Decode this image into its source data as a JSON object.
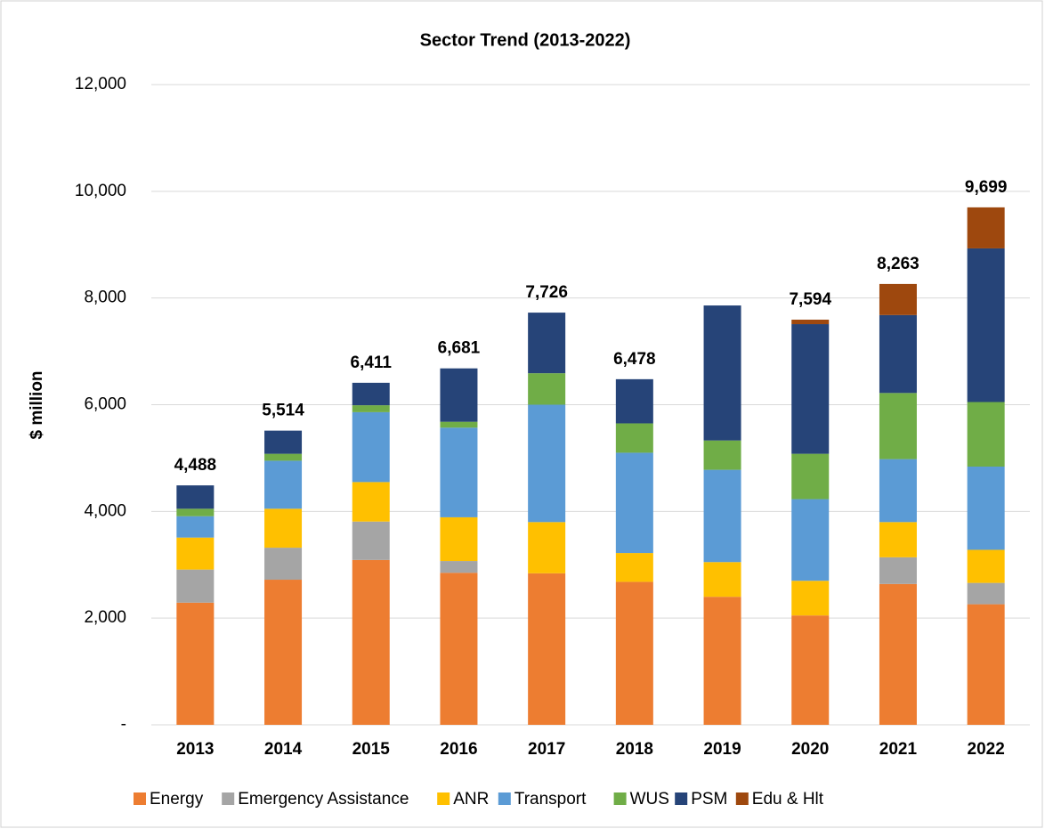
{
  "chart_data": {
    "type": "stacked_bar",
    "title": "Sector Trend (2013-2022)",
    "y_label": "$ million",
    "categories": [
      "2013",
      "2014",
      "2015",
      "2016",
      "2017",
      "2018",
      "2019",
      "2020",
      "2021",
      "2022"
    ],
    "series": [
      {
        "name": "Energy",
        "color": "#ed7d31",
        "values": [
          2290,
          2720,
          3090,
          2850,
          2840,
          2680,
          2400,
          2050,
          2640,
          2260
        ]
      },
      {
        "name": "Emergency Assistance",
        "color": "#a5a5a5",
        "values": [
          620,
          600,
          720,
          220,
          0,
          0,
          0,
          0,
          500,
          400
        ]
      },
      {
        "name": "ANR",
        "color": "#ffc000",
        "values": [
          600,
          730,
          740,
          820,
          960,
          540,
          650,
          650,
          660,
          620
        ]
      },
      {
        "name": "Transport",
        "color": "#5b9bd5",
        "values": [
          400,
          900,
          1310,
          1680,
          2200,
          1880,
          1730,
          1530,
          1180,
          1560
        ]
      },
      {
        "name": "WUS",
        "color": "#70ad47",
        "values": [
          140,
          130,
          130,
          110,
          590,
          550,
          550,
          850,
          1240,
          1210
        ]
      },
      {
        "name": "PSM",
        "color": "#264478",
        "values": [
          438,
          434,
          421,
          1001,
          1136,
          828,
          2530,
          2430,
          1460,
          2880
        ]
      },
      {
        "name": "Edu & Hlt",
        "color": "#9e480e",
        "values": [
          0,
          0,
          0,
          0,
          0,
          0,
          0,
          84,
          583,
          769
        ]
      }
    ],
    "total_labels": [
      "4,488",
      "5,514",
      "6,411",
      "6,681",
      "7,726",
      "6,478",
      null,
      "7,594",
      "8,263",
      "9,699"
    ],
    "ylim": [
      0,
      12000
    ],
    "yticks": [
      {
        "value": 0,
        "label": "-"
      },
      {
        "value": 2000,
        "label": "2,000"
      },
      {
        "value": 4000,
        "label": "4,000"
      },
      {
        "value": 6000,
        "label": "6,000"
      },
      {
        "value": 8000,
        "label": "8,000"
      },
      {
        "value": 10000,
        "label": "10,000"
      },
      {
        "value": 12000,
        "label": "12,000"
      }
    ],
    "grid": true,
    "legend": "bottom"
  }
}
